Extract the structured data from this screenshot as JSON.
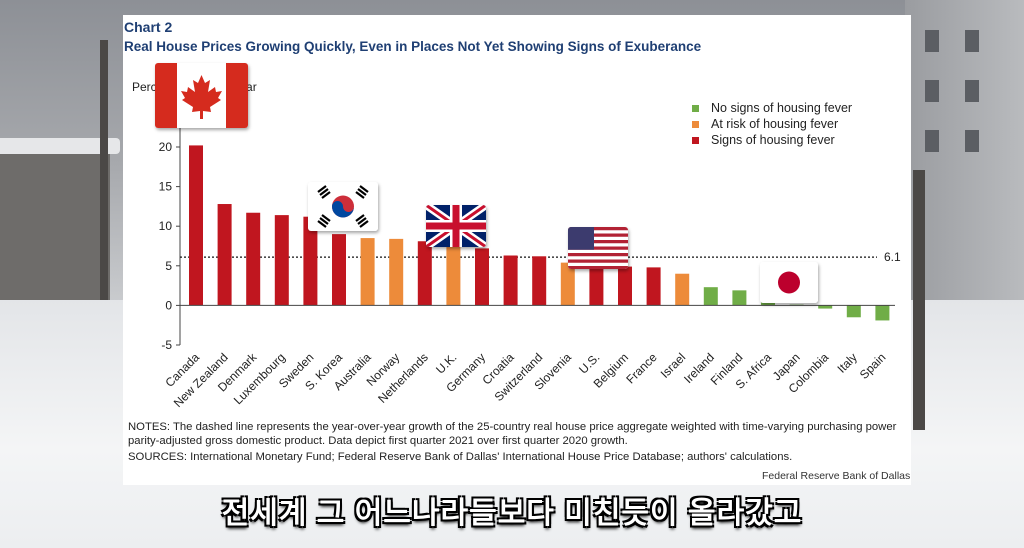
{
  "chart_data": {
    "type": "bar",
    "chart_number": "Chart 2",
    "title": "Real House Prices Growing Quickly, Even in Places Not Yet Showing Signs of Exuberance",
    "ylabel": "Percent, year over year",
    "ylim": [
      -5,
      25
    ],
    "yticks": [
      -5,
      0,
      5,
      10,
      15,
      20
    ],
    "categories": [
      "Canada",
      "New Zealand",
      "Denmark",
      "Luxembourg",
      "Sweden",
      "S. Korea",
      "Australia",
      "Norway",
      "Netherlands",
      "U.K.",
      "Germany",
      "Croatia",
      "Switzerland",
      "Slovenia",
      "U.S.",
      "Belgium",
      "France",
      "Israel",
      "Ireland",
      "Finland",
      "S. Africa",
      "Japan",
      "Colombia",
      "Italy",
      "Spain"
    ],
    "values": [
      20.2,
      12.8,
      11.7,
      11.4,
      11.2,
      9.0,
      8.5,
      8.4,
      8.1,
      7.9,
      7.2,
      6.3,
      6.2,
      5.4,
      5.2,
      4.9,
      4.8,
      4.0,
      2.3,
      1.9,
      0.6,
      0.1,
      -0.4,
      -1.5,
      -1.9
    ],
    "status": [
      "fever",
      "fever",
      "fever",
      "fever",
      "fever",
      "fever",
      "risk",
      "risk",
      "fever",
      "risk",
      "fever",
      "fever",
      "fever",
      "risk",
      "fever",
      "fever",
      "fever",
      "risk",
      "none",
      "none",
      "none",
      "none",
      "none",
      "none",
      "none"
    ],
    "legend": [
      {
        "key": "none",
        "label": "No signs of housing fever",
        "color": "#70ad47"
      },
      {
        "key": "risk",
        "label": "At risk of housing fever",
        "color": "#ed8b3a"
      },
      {
        "key": "fever",
        "label": "Signs of housing fever",
        "color": "#c0161f"
      }
    ],
    "reference_line": {
      "value": 6.1,
      "label": "6.1"
    },
    "legend_position": "top-right",
    "grid": false
  },
  "notes": "NOTES: The dashed line represents the year-over-year  growth of the 25-country real house price aggregate weighted with time-varying purchasing power parity-adjusted gross domestic product. Data depict first quarter 2021 over first quarter 2020 growth.",
  "sources": "SOURCES: International Monetary Fund; Federal Reserve Bank of Dallas' International House Price Database; authors' calculations.",
  "credit": "Federal Reserve Bank of Dallas",
  "caption": "전세계 그 어느나라들보다 미친듯이 올라갔고",
  "flag_overlays": [
    "canada-flag-icon",
    "south-korea-flag-icon",
    "uk-flag-icon",
    "us-flag-icon",
    "japan-flag-icon"
  ]
}
